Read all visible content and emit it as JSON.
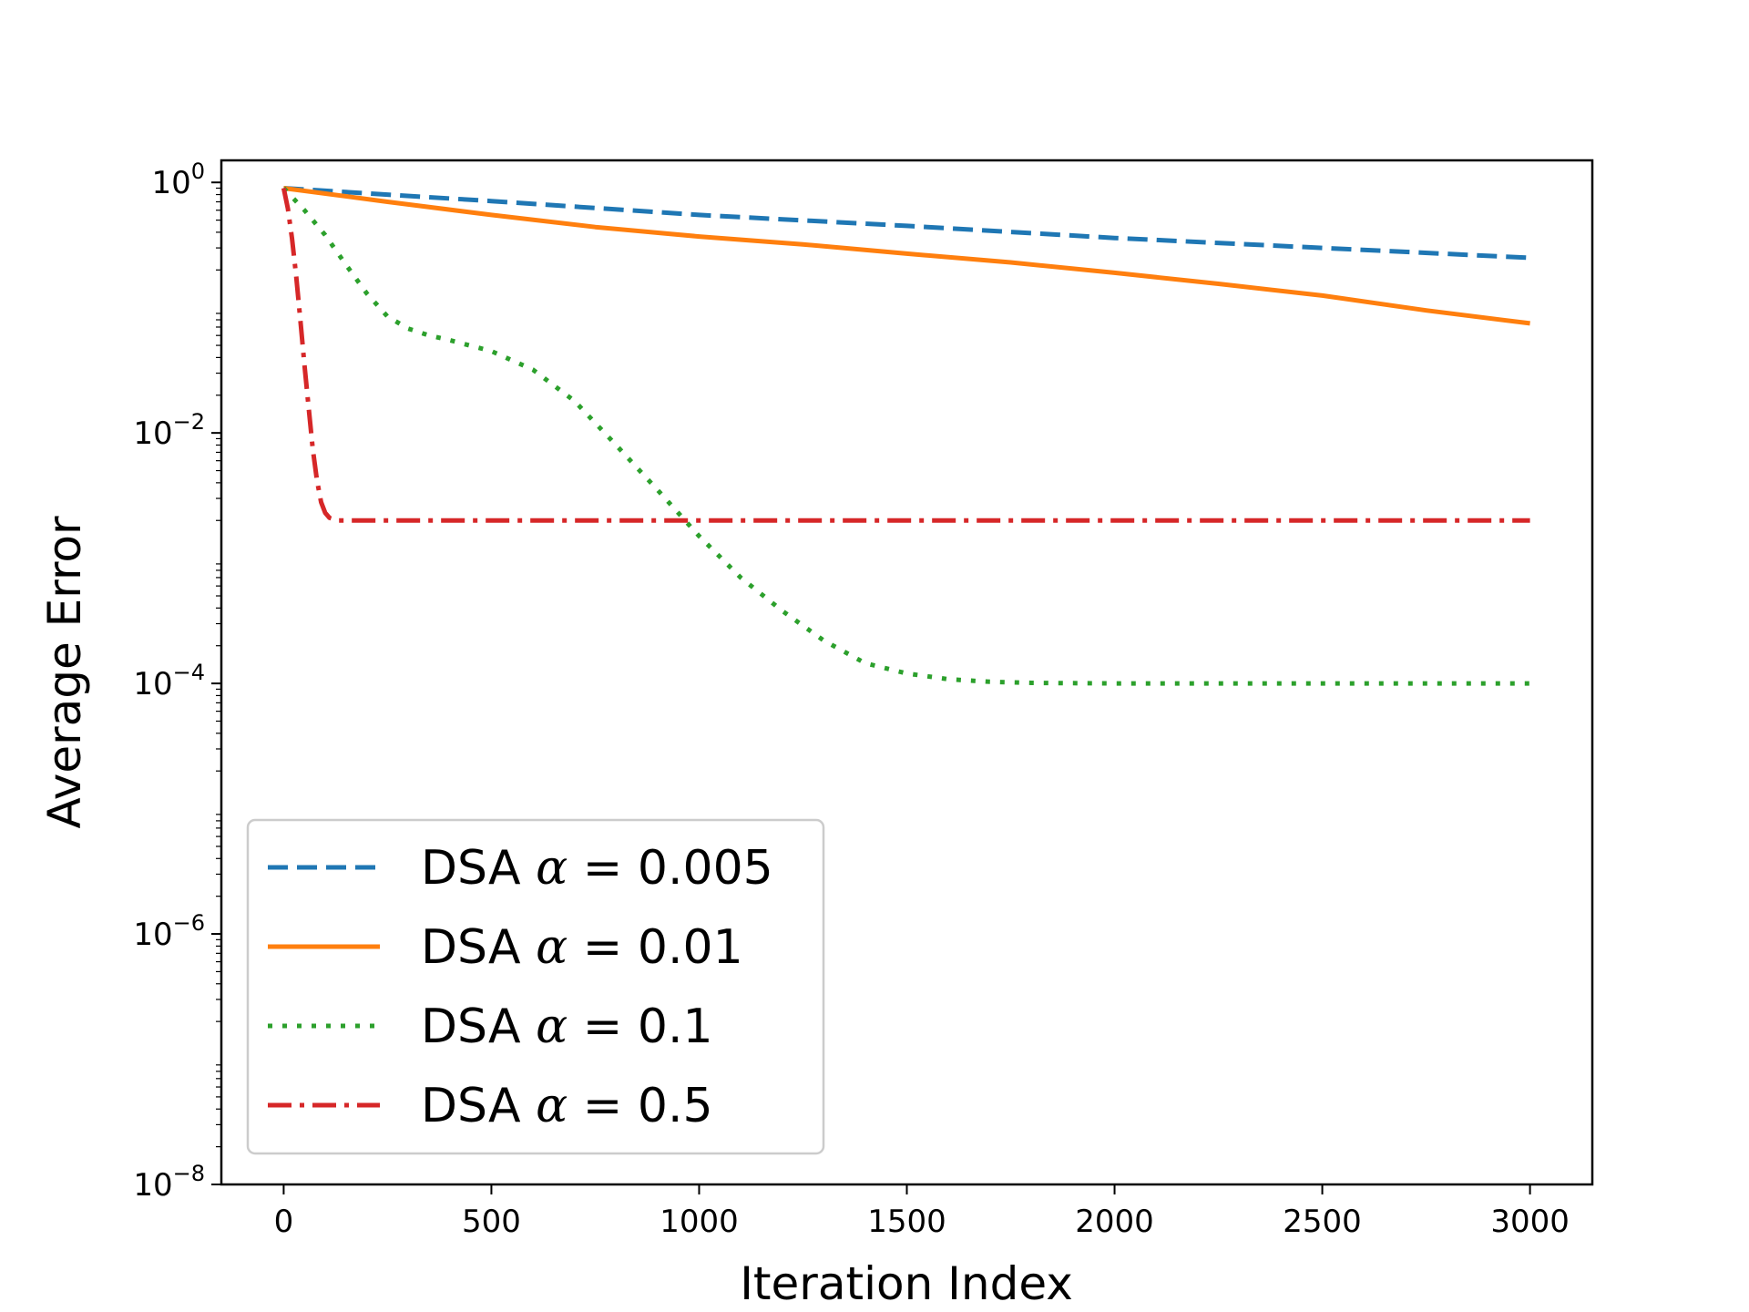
{
  "chart_data": {
    "type": "line",
    "title": "",
    "xlabel": "Iteration Index",
    "ylabel": "Average Error",
    "xscale": "linear",
    "yscale": "log",
    "xlim": [
      -150,
      3150
    ],
    "ylim": [
      1e-08,
      1.5
    ],
    "xticks": [
      0,
      500,
      1000,
      1500,
      2000,
      2500,
      3000
    ],
    "xtick_labels": [
      "0",
      "500",
      "1000",
      "1500",
      "2000",
      "2500",
      "3000"
    ],
    "yticks": [
      1e-08,
      1e-06,
      0.0001,
      0.01,
      1
    ],
    "ytick_labels": [
      {
        "base": "10",
        "exp": "−8"
      },
      {
        "base": "10",
        "exp": "−6"
      },
      {
        "base": "10",
        "exp": "−4"
      },
      {
        "base": "10",
        "exp": "−2"
      },
      {
        "base": "10",
        "exp": "0"
      }
    ],
    "grid": false,
    "legend_position": "lower-left",
    "series": [
      {
        "name": "DSA α = 0.005",
        "label_prefix": "DSA ",
        "label_symbol": "α",
        "label_suffix": " = 0.005",
        "color": "#1f77b4",
        "style": "dashed",
        "x": [
          0,
          500,
          1000,
          1500,
          2000,
          2500,
          3000
        ],
        "y": [
          0.9,
          0.71,
          0.55,
          0.45,
          0.36,
          0.3,
          0.25
        ]
      },
      {
        "name": "DSA α = 0.01",
        "label_prefix": "DSA ",
        "label_symbol": "α",
        "label_suffix": " = 0.01",
        "color": "#ff7f0e",
        "style": "solid",
        "x": [
          0,
          250,
          500,
          750,
          1000,
          1250,
          1500,
          1750,
          2000,
          2250,
          2500,
          2750,
          3000
        ],
        "y": [
          0.9,
          0.7,
          0.55,
          0.44,
          0.37,
          0.32,
          0.27,
          0.23,
          0.19,
          0.155,
          0.125,
          0.095,
          0.075
        ]
      },
      {
        "name": "DSA α = 0.1",
        "label_prefix": "DSA ",
        "label_symbol": "α",
        "label_suffix": " = 0.1",
        "color": "#2ca02c",
        "style": "dotted",
        "x": [
          0,
          50,
          100,
          150,
          200,
          250,
          300,
          350,
          400,
          500,
          600,
          700,
          800,
          900,
          1000,
          1100,
          1200,
          1300,
          1400,
          1500,
          1600,
          1700,
          1800,
          2000,
          2500,
          3000
        ],
        "y": [
          0.9,
          0.6,
          0.38,
          0.22,
          0.13,
          0.085,
          0.068,
          0.06,
          0.055,
          0.045,
          0.032,
          0.018,
          0.008,
          0.0035,
          0.0015,
          0.0007,
          0.00038,
          0.00022,
          0.000145,
          0.00012,
          0.000108,
          0.000103,
          0.000101,
          0.0001,
          0.0001,
          0.0001
        ]
      },
      {
        "name": "DSA α = 0.5",
        "label_prefix": "DSA ",
        "label_symbol": "α",
        "label_suffix": " = 0.5",
        "color": "#d62728",
        "style": "dashdot",
        "x": [
          0,
          10,
          20,
          30,
          40,
          50,
          60,
          70,
          80,
          90,
          100,
          110,
          120,
          130,
          150,
          200,
          1000,
          2000,
          3000
        ],
        "y": [
          0.9,
          0.62,
          0.36,
          0.18,
          0.08,
          0.035,
          0.016,
          0.0075,
          0.0042,
          0.0028,
          0.0023,
          0.0021,
          0.00205,
          0.002,
          0.002,
          0.002,
          0.002,
          0.002,
          0.002
        ]
      }
    ]
  }
}
